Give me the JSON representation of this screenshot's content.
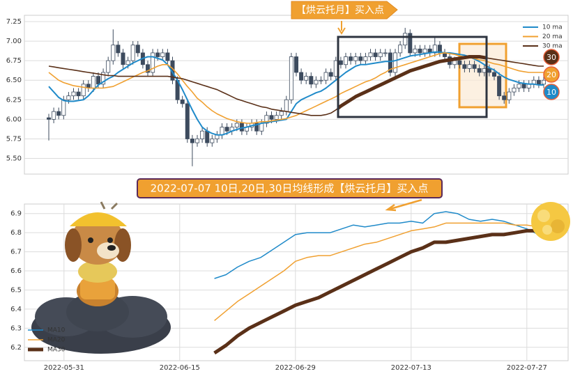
{
  "chart_data": [
    {
      "type": "candlestick",
      "annotation": "【烘云托月】买入点",
      "open": [
        6.02,
        6.0,
        6.1,
        6.05,
        6.25,
        6.3,
        6.35,
        6.3,
        6.45,
        6.4,
        6.55,
        6.45,
        6.6,
        6.75,
        6.95,
        6.85,
        6.7,
        6.75,
        6.95,
        6.85,
        6.7,
        6.6,
        6.85,
        6.8,
        6.85,
        6.75,
        6.5,
        6.25,
        6.2,
        5.75,
        5.7,
        5.75,
        5.85,
        5.7,
        5.75,
        5.8,
        5.9,
        5.85,
        5.9,
        5.95,
        5.85,
        5.9,
        5.95,
        5.85,
        5.95,
        6.05,
        6.0,
        6.05,
        6.1,
        6.25,
        6.8,
        6.6,
        6.5,
        6.55,
        6.45,
        6.5,
        6.5,
        6.6,
        6.55,
        6.75,
        6.7,
        6.8,
        6.75,
        6.8,
        6.75,
        6.8,
        6.85,
        6.8,
        6.85,
        6.85,
        6.6,
        6.85,
        6.95,
        7.1,
        6.85,
        6.9,
        6.85,
        6.9,
        6.85,
        6.95,
        6.85,
        6.8,
        6.7,
        6.75,
        6.7,
        6.65,
        6.7,
        6.65,
        6.6,
        6.65,
        6.6,
        6.55,
        6.3,
        6.25,
        6.35,
        6.4,
        6.45,
        6.4,
        6.45,
        6.5,
        6.45
      ],
      "high": [
        6.07,
        6.15,
        6.15,
        6.3,
        6.35,
        6.4,
        6.4,
        6.5,
        6.5,
        6.6,
        6.6,
        6.65,
        6.8,
        7.15,
        7.0,
        6.9,
        6.8,
        7.0,
        7.0,
        6.9,
        6.75,
        6.9,
        6.9,
        6.9,
        6.9,
        6.8,
        6.55,
        6.3,
        6.25,
        5.8,
        5.8,
        5.9,
        5.9,
        5.8,
        5.85,
        5.95,
        5.95,
        5.95,
        6.0,
        6.0,
        5.95,
        6.0,
        6.0,
        6.0,
        6.1,
        6.1,
        6.1,
        6.15,
        6.3,
        6.85,
        6.85,
        6.65,
        6.6,
        6.6,
        6.55,
        6.55,
        6.65,
        6.65,
        6.8,
        6.8,
        6.85,
        6.85,
        6.85,
        6.85,
        6.85,
        6.9,
        6.9,
        6.9,
        6.9,
        6.9,
        6.9,
        7.0,
        7.17,
        7.15,
        6.95,
        6.95,
        6.95,
        6.95,
        7.05,
        7.0,
        6.9,
        6.85,
        6.8,
        6.8,
        6.75,
        6.75,
        6.75,
        6.7,
        6.7,
        6.7,
        6.65,
        6.6,
        6.35,
        6.4,
        6.45,
        6.5,
        6.5,
        6.5,
        6.55,
        6.55,
        6.55
      ],
      "low": [
        5.73,
        5.95,
        6.0,
        6.0,
        6.2,
        6.25,
        6.25,
        6.25,
        6.35,
        6.35,
        6.4,
        6.4,
        6.55,
        6.7,
        6.8,
        6.65,
        6.65,
        6.7,
        6.8,
        6.65,
        6.55,
        6.55,
        6.75,
        6.75,
        6.7,
        6.45,
        6.2,
        6.15,
        5.7,
        5.4,
        5.65,
        5.7,
        5.65,
        5.65,
        5.7,
        5.75,
        5.8,
        5.8,
        5.85,
        5.8,
        5.8,
        5.85,
        5.8,
        5.8,
        5.9,
        5.95,
        5.95,
        6.0,
        6.05,
        6.2,
        6.55,
        6.45,
        6.45,
        6.4,
        6.4,
        6.45,
        6.45,
        6.5,
        6.5,
        6.65,
        6.65,
        6.7,
        6.7,
        6.7,
        6.7,
        6.75,
        6.75,
        6.75,
        6.8,
        6.55,
        6.55,
        6.8,
        6.9,
        6.8,
        6.8,
        6.8,
        6.8,
        6.8,
        6.8,
        6.8,
        6.75,
        6.65,
        6.65,
        6.65,
        6.6,
        6.6,
        6.6,
        6.55,
        6.55,
        6.55,
        6.5,
        6.25,
        6.2,
        6.2,
        6.3,
        6.35,
        6.35,
        6.35,
        6.4,
        6.4,
        6.4
      ],
      "close": [
        6.0,
        6.1,
        6.05,
        6.25,
        6.3,
        6.35,
        6.3,
        6.45,
        6.4,
        6.55,
        6.45,
        6.6,
        6.75,
        6.95,
        6.85,
        6.7,
        6.75,
        6.95,
        6.85,
        6.7,
        6.6,
        6.85,
        6.8,
        6.85,
        6.75,
        6.5,
        6.25,
        6.2,
        5.75,
        5.7,
        5.75,
        5.85,
        5.7,
        5.75,
        5.8,
        5.9,
        5.85,
        5.9,
        5.95,
        5.85,
        5.9,
        5.95,
        5.85,
        5.95,
        6.05,
        6.0,
        6.05,
        6.1,
        6.25,
        6.8,
        6.6,
        6.5,
        6.55,
        6.45,
        6.5,
        6.5,
        6.6,
        6.55,
        6.75,
        6.7,
        6.8,
        6.75,
        6.8,
        6.75,
        6.8,
        6.85,
        6.8,
        6.85,
        6.85,
        6.6,
        6.85,
        6.95,
        7.1,
        6.85,
        6.9,
        6.85,
        6.9,
        6.85,
        6.95,
        6.85,
        6.8,
        6.7,
        6.75,
        6.7,
        6.65,
        6.7,
        6.65,
        6.6,
        6.65,
        6.6,
        6.55,
        6.3,
        6.25,
        6.35,
        6.4,
        6.45,
        6.4,
        6.45,
        6.5,
        6.45,
        6.5
      ],
      "candle_colors": {
        "up": "#ffffff",
        "down": "#3d4b5e",
        "edge": "#3d4b5e"
      },
      "series": [
        {
          "name": "10 ma",
          "color": "#1f8ac9",
          "values": [
            6.42,
            6.35,
            6.28,
            6.24,
            6.23,
            6.23,
            6.24,
            6.25,
            6.3,
            6.37,
            6.44,
            6.48,
            6.52,
            6.55,
            6.6,
            6.64,
            6.68,
            6.72,
            6.75,
            6.78,
            6.8,
            6.8,
            6.78,
            6.76,
            6.7,
            6.6,
            6.5,
            6.38,
            6.25,
            6.12,
            6.0,
            5.9,
            5.85,
            5.82,
            5.8,
            5.8,
            5.82,
            5.85,
            5.87,
            5.89,
            5.9,
            5.92,
            5.93,
            5.95,
            5.96,
            5.97,
            5.98,
            5.99,
            6.0,
            6.1,
            6.2,
            6.25,
            6.28,
            6.31,
            6.34,
            6.36,
            6.4,
            6.45,
            6.5,
            6.55,
            6.6,
            6.64,
            6.68,
            6.7,
            6.7,
            6.71,
            6.72,
            6.73,
            6.74,
            6.74,
            6.75,
            6.77,
            6.79,
            6.81,
            6.82,
            6.83,
            6.84,
            6.85,
            6.86,
            6.86,
            6.85,
            6.85,
            6.84,
            6.83,
            6.82,
            6.8,
            6.77,
            6.74,
            6.7,
            6.66,
            6.63,
            6.58,
            6.54,
            6.51,
            6.49,
            6.47,
            6.46,
            6.45,
            6.45,
            6.44,
            6.44
          ]
        },
        {
          "name": "20 ma",
          "color": "#f0a030",
          "values": [
            6.6,
            6.55,
            6.5,
            6.47,
            6.45,
            6.43,
            6.42,
            6.41,
            6.4,
            6.4,
            6.4,
            6.4,
            6.41,
            6.42,
            6.45,
            6.48,
            6.51,
            6.54,
            6.57,
            6.6,
            6.62,
            6.65,
            6.68,
            6.7,
            6.7,
            6.65,
            6.58,
            6.5,
            6.42,
            6.35,
            6.27,
            6.22,
            6.16,
            6.11,
            6.07,
            6.04,
            6.01,
            5.99,
            5.97,
            5.96,
            5.95,
            5.95,
            5.96,
            5.97,
            5.97,
            5.98,
            5.99,
            6.0,
            6.01,
            6.03,
            6.05,
            6.08,
            6.11,
            6.14,
            6.17,
            6.2,
            6.23,
            6.26,
            6.29,
            6.33,
            6.36,
            6.39,
            6.42,
            6.45,
            6.48,
            6.5,
            6.53,
            6.57,
            6.6,
            6.64,
            6.66,
            6.68,
            6.7,
            6.72,
            6.74,
            6.76,
            6.78,
            6.8,
            6.82,
            6.84,
            6.85,
            6.84,
            6.83,
            6.81,
            6.8,
            6.79,
            6.78,
            6.76,
            6.75,
            6.73,
            6.71,
            6.7,
            6.68,
            6.66,
            6.64,
            6.62,
            6.61,
            6.6,
            6.6,
            6.6,
            6.6
          ]
        },
        {
          "name": "30 ma",
          "color": "#5a3018",
          "values": [
            6.68,
            6.67,
            6.66,
            6.65,
            6.64,
            6.63,
            6.62,
            6.61,
            6.6,
            6.59,
            6.58,
            6.57,
            6.56,
            6.56,
            6.55,
            6.55,
            6.55,
            6.55,
            6.55,
            6.55,
            6.55,
            6.55,
            6.55,
            6.55,
            6.55,
            6.54,
            6.53,
            6.52,
            6.5,
            6.48,
            6.46,
            6.44,
            6.42,
            6.4,
            6.38,
            6.35,
            6.32,
            6.29,
            6.26,
            6.24,
            6.22,
            6.2,
            6.18,
            6.16,
            6.15,
            6.13,
            6.12,
            6.11,
            6.1,
            6.09,
            6.08,
            6.07,
            6.06,
            6.05,
            6.05,
            6.05,
            6.06,
            6.08,
            6.12,
            6.17,
            6.21,
            6.25,
            6.29,
            6.32,
            6.35,
            6.38,
            6.41,
            6.44,
            6.47,
            6.5,
            6.53,
            6.56,
            6.59,
            6.62,
            6.64,
            6.66,
            6.68,
            6.7,
            6.72,
            6.74,
            6.75,
            6.76,
            6.77,
            6.78,
            6.79,
            6.8,
            6.8,
            6.8,
            6.79,
            6.78,
            6.77,
            6.76,
            6.75,
            6.74,
            6.73,
            6.72,
            6.71,
            6.7,
            6.69,
            6.68,
            6.68
          ]
        }
      ],
      "badges": [
        {
          "label": "30",
          "color": "#5a3018"
        },
        {
          "label": "20",
          "color": "#f0a030"
        },
        {
          "label": "10",
          "color": "#1f8ac9"
        }
      ],
      "ylim": [
        5.3,
        7.33
      ],
      "yticks": [
        {
          "value": 5.5,
          "label": "5.50"
        },
        5.75,
        {
          "value": 6.0,
          "label": "6.00"
        },
        6.25,
        {
          "value": 6.5,
          "label": "6.50"
        },
        6.75,
        {
          "value": 7.0,
          "label": "7.00"
        },
        7.25
      ],
      "grid": true,
      "legend": "upper right"
    },
    {
      "type": "line",
      "title": "2022-07-07 10日,20日,30日均线形成【烘云托月】买入点",
      "categories": [
        null,
        null,
        null,
        "2022-05-31",
        null,
        null,
        null,
        null,
        null,
        null,
        null,
        null,
        null,
        "2022-06-15",
        null,
        null,
        null,
        null,
        null,
        null,
        null,
        null,
        null,
        "2022-06-29",
        null,
        null,
        null,
        null,
        null,
        null,
        null,
        null,
        null,
        "2022-07-13",
        null,
        null,
        null,
        null,
        null,
        null,
        null,
        null,
        null,
        "2022-07-27",
        null,
        null
      ],
      "series": [
        {
          "name": "MA10",
          "color": "#1f8ac9",
          "width": 1.5,
          "values": [
            null,
            null,
            null,
            null,
            null,
            null,
            null,
            null,
            null,
            null,
            null,
            null,
            null,
            null,
            null,
            null,
            6.56,
            6.58,
            6.62,
            6.65,
            6.67,
            6.71,
            6.75,
            6.79,
            6.8,
            6.8,
            6.8,
            6.82,
            6.84,
            6.83,
            6.84,
            6.85,
            6.85,
            6.86,
            6.85,
            6.9,
            6.91,
            6.9,
            6.87,
            6.86,
            6.87,
            6.86,
            6.84,
            6.82,
            6.79,
            6.77
          ]
        },
        {
          "name": "MA20",
          "color": "#f0a030",
          "width": 1.5,
          "values": [
            null,
            null,
            null,
            null,
            null,
            null,
            null,
            null,
            null,
            null,
            null,
            null,
            null,
            null,
            null,
            null,
            6.34,
            6.39,
            6.44,
            6.48,
            6.52,
            6.56,
            6.6,
            6.65,
            6.67,
            6.68,
            6.68,
            6.7,
            6.72,
            6.74,
            6.75,
            6.77,
            6.79,
            6.81,
            6.82,
            6.83,
            6.85,
            6.85,
            6.85,
            6.85,
            6.85,
            6.85,
            6.84,
            6.84,
            6.83,
            6.82
          ]
        },
        {
          "name": "MA30",
          "color": "#5a3018",
          "width": 5,
          "values": [
            null,
            null,
            null,
            null,
            null,
            null,
            null,
            null,
            null,
            null,
            null,
            null,
            null,
            null,
            null,
            null,
            6.17,
            6.21,
            6.26,
            6.3,
            6.33,
            6.36,
            6.39,
            6.42,
            6.44,
            6.46,
            6.49,
            6.52,
            6.55,
            6.58,
            6.61,
            6.64,
            6.67,
            6.7,
            6.72,
            6.75,
            6.75,
            6.76,
            6.77,
            6.78,
            6.79,
            6.79,
            6.8,
            6.81,
            6.81,
            6.82
          ]
        }
      ],
      "ylim": [
        6.13,
        6.95
      ],
      "yticks": [
        6.2,
        6.3,
        6.4,
        6.5,
        6.6,
        6.7,
        6.8,
        6.9
      ],
      "grid": true,
      "legend": "lower left"
    }
  ]
}
